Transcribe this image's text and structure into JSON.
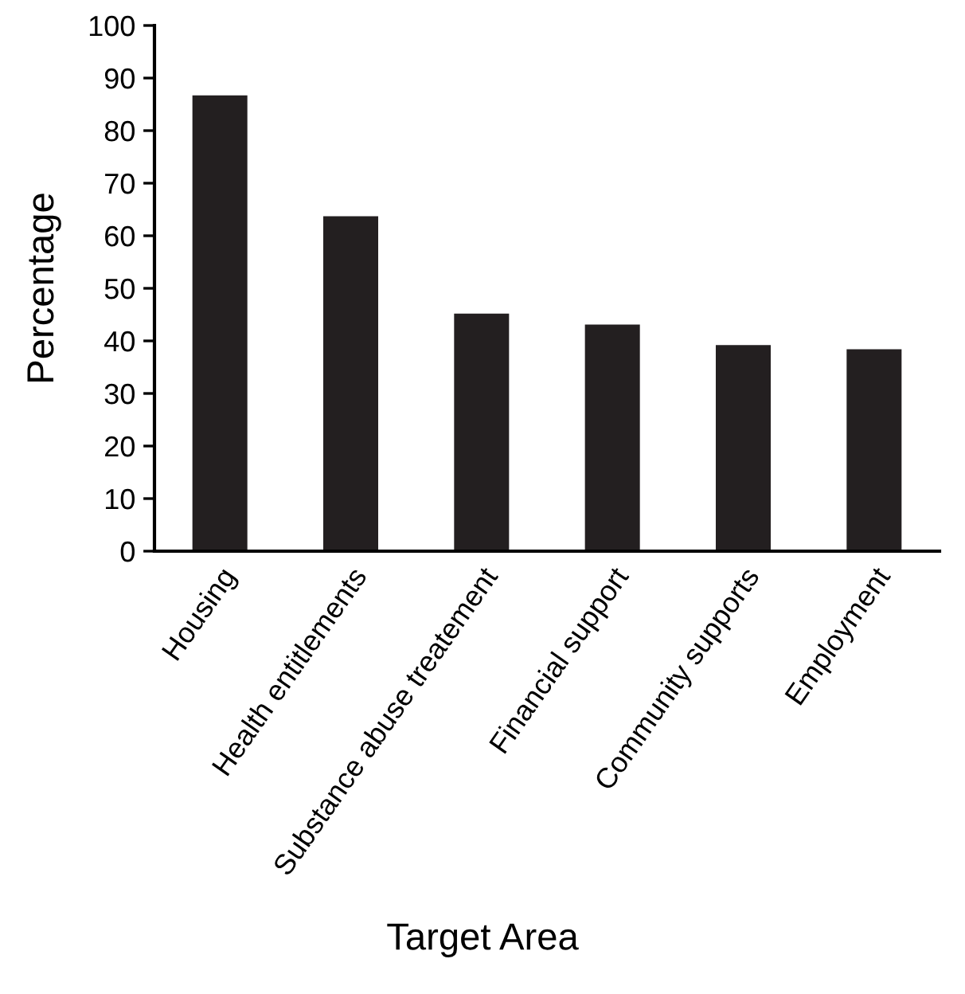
{
  "chart_data": {
    "type": "bar",
    "xlabel": "Target Area",
    "ylabel": "Percentage",
    "categories": [
      "Housing",
      "Health entitlements",
      "Substance abuse treatement",
      "Financial support",
      "Community supports",
      "Employment"
    ],
    "values": [
      86.7,
      63.7,
      45.2,
      43.1,
      39.2,
      38.4
    ],
    "color": "#231f20",
    "ylim": [
      0,
      100
    ],
    "yticks": [
      0,
      10,
      20,
      30,
      40,
      50,
      60,
      70,
      80,
      90,
      100
    ],
    "grid": false
  }
}
